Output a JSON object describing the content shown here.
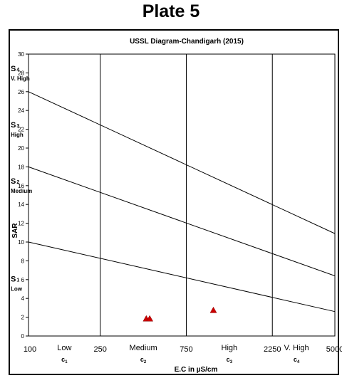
{
  "page_title": "Plate 5",
  "chart_data": {
    "type": "scatter",
    "title": "USSL Diagram-Chandigarh (2015)",
    "xlabel": "E.C in  µS/cm",
    "ylabel": "SAR",
    "ylim": [
      0,
      30
    ],
    "y_ticks": [
      0,
      2,
      4,
      6,
      8,
      10,
      12,
      14,
      16,
      18,
      20,
      22,
      24,
      26,
      28,
      30
    ],
    "x_scale": "log",
    "xlim": [
      100,
      5000
    ],
    "x_ticks": [
      100,
      250,
      750,
      2250,
      5000
    ],
    "x_tick_labels": [
      "100",
      "250",
      "750",
      "2250",
      "5000"
    ],
    "vertical_boundaries": [
      250,
      750,
      2250
    ],
    "salinity_classes": [
      {
        "name": "Low",
        "code": "C",
        "sub": "1"
      },
      {
        "name": "Medium",
        "code": "C",
        "sub": "2"
      },
      {
        "name": "High",
        "code": "C",
        "sub": "3"
      },
      {
        "name": "V. High",
        "code": "C",
        "sub": "4"
      }
    ],
    "sodium_classes": [
      {
        "code": "S",
        "sub": "1",
        "name": "Low",
        "y": 5.8
      },
      {
        "code": "S",
        "sub": "2",
        "name": "Medium",
        "y": 16.2
      },
      {
        "code": "S",
        "sub": "3",
        "name": "High",
        "y": 22.2
      },
      {
        "code": "S",
        "sub": "4",
        "name": "V. High",
        "y": 28.2
      }
    ],
    "boundary_lines": [
      {
        "from": [
          100,
          10
        ],
        "to": [
          5000,
          2.6
        ]
      },
      {
        "from": [
          100,
          18
        ],
        "to": [
          5000,
          6.4
        ]
      },
      {
        "from": [
          100,
          26
        ],
        "to": [
          5000,
          10.9
        ]
      }
    ],
    "points": [
      {
        "x": 450,
        "y": 1.8
      },
      {
        "x": 470,
        "y": 1.8
      },
      {
        "x": 1060,
        "y": 2.7
      }
    ],
    "marker_color": "#cc0000",
    "grid": false
  }
}
